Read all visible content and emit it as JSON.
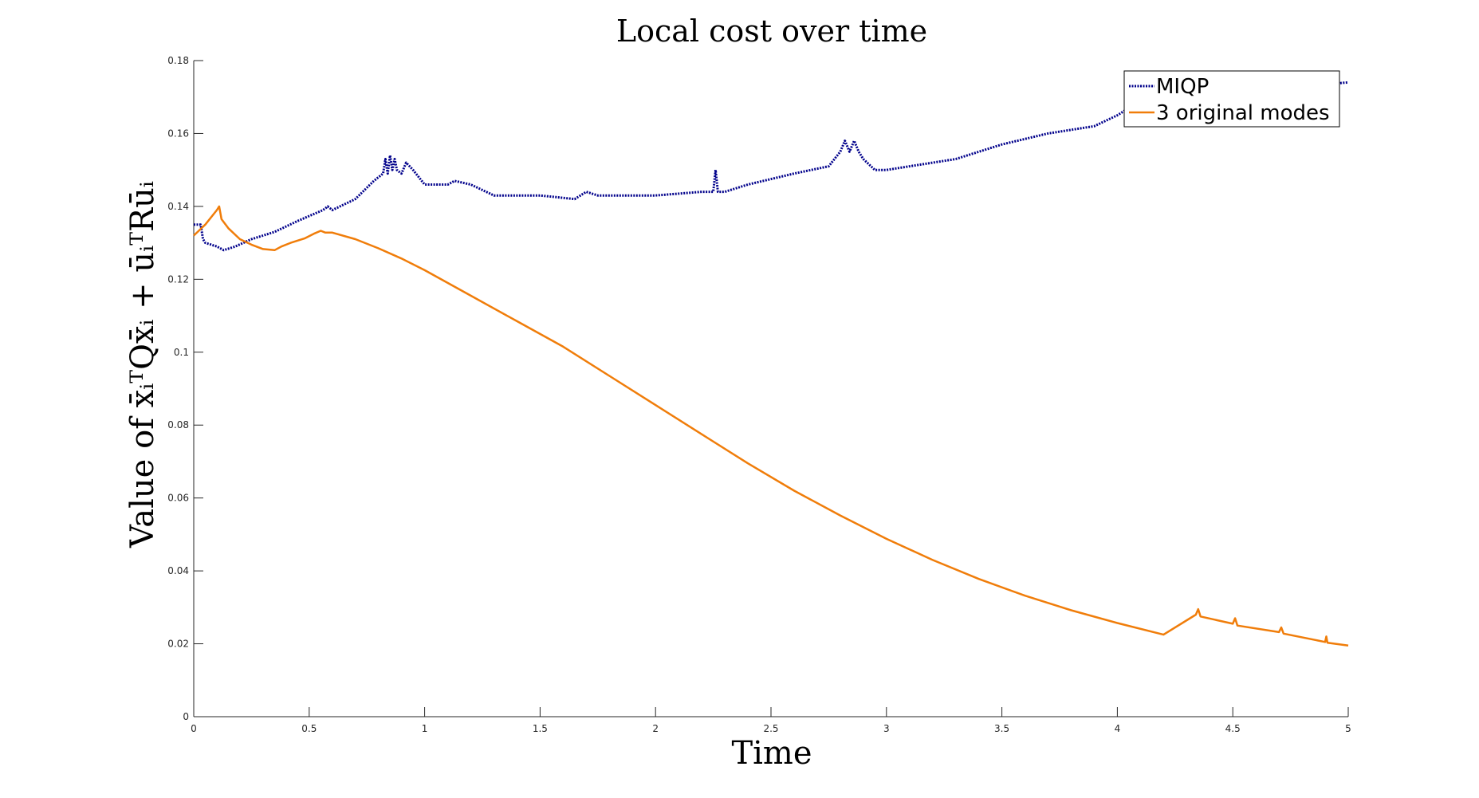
{
  "chart_data": {
    "type": "line",
    "title": "Local cost over time",
    "xlabel": "Time",
    "ylabel": "Value of x̄ᵢᵀQx̄ᵢ + ūᵢᵀRūᵢ",
    "xlim": [
      0,
      5
    ],
    "ylim": [
      0,
      0.18
    ],
    "xticks": [
      0,
      0.5,
      1,
      1.5,
      2,
      2.5,
      3,
      3.5,
      4,
      4.5,
      5
    ],
    "xtick_labels": [
      "0",
      "0.5",
      "1",
      "1.5",
      "2",
      "2.5",
      "3",
      "3.5",
      "4",
      "4.5",
      "5"
    ],
    "yticks": [
      0,
      0.02,
      0.04,
      0.06,
      0.08,
      0.1,
      0.12,
      0.14,
      0.16,
      0.18
    ],
    "ytick_labels": [
      "0",
      "0.02",
      "0.04",
      "0.06",
      "0.08",
      "0.1",
      "0.12",
      "0.14",
      "0.16",
      "0.18"
    ],
    "grid": false,
    "legend_position": "top-right",
    "series": [
      {
        "name": "MIQP",
        "color": "#00008b",
        "style": "dotted",
        "x": [
          0,
          0.03,
          0.04,
          0.05,
          0.1,
          0.13,
          0.18,
          0.25,
          0.35,
          0.45,
          0.56,
          0.58,
          0.6,
          0.7,
          0.78,
          0.82,
          0.83,
          0.84,
          0.85,
          0.86,
          0.87,
          0.88,
          0.9,
          0.92,
          0.95,
          1.0,
          1.05,
          1.1,
          1.13,
          1.2,
          1.3,
          1.5,
          1.65,
          1.7,
          1.75,
          1.8,
          2.0,
          2.2,
          2.25,
          2.26,
          2.27,
          2.3,
          2.4,
          2.6,
          2.75,
          2.8,
          2.82,
          2.84,
          2.86,
          2.88,
          2.9,
          2.95,
          3.0,
          3.1,
          3.3,
          3.5,
          3.7,
          3.9,
          4.0,
          4.05,
          4.1,
          4.3,
          4.6,
          4.8,
          5.0
        ],
        "y": [
          0.135,
          0.135,
          0.131,
          0.13,
          0.129,
          0.128,
          0.129,
          0.131,
          0.133,
          0.136,
          0.139,
          0.14,
          0.139,
          0.142,
          0.147,
          0.149,
          0.153,
          0.149,
          0.154,
          0.15,
          0.153,
          0.15,
          0.149,
          0.152,
          0.15,
          0.146,
          0.146,
          0.146,
          0.147,
          0.146,
          0.143,
          0.143,
          0.142,
          0.144,
          0.143,
          0.143,
          0.143,
          0.144,
          0.144,
          0.15,
          0.144,
          0.144,
          0.146,
          0.149,
          0.151,
          0.155,
          0.158,
          0.155,
          0.158,
          0.155,
          0.153,
          0.15,
          0.15,
          0.151,
          0.153,
          0.157,
          0.16,
          0.162,
          0.165,
          0.167,
          0.169,
          0.171,
          0.172,
          0.173,
          0.174
        ]
      },
      {
        "name": "3 original modes",
        "color": "#f07d0a",
        "style": "solid",
        "x": [
          0,
          0.05,
          0.1,
          0.11,
          0.12,
          0.15,
          0.2,
          0.25,
          0.3,
          0.35,
          0.38,
          0.42,
          0.48,
          0.52,
          0.55,
          0.57,
          0.6,
          0.7,
          0.8,
          0.9,
          1.0,
          1.2,
          1.4,
          1.6,
          1.8,
          2.0,
          2.2,
          2.4,
          2.6,
          2.8,
          3.0,
          3.2,
          3.4,
          3.6,
          3.8,
          4.0,
          4.2,
          4.34,
          4.35,
          4.36,
          4.5,
          4.51,
          4.52,
          4.7,
          4.71,
          4.72,
          4.9,
          4.905,
          4.91,
          5.0
        ],
        "y": [
          0.132,
          0.135,
          0.139,
          0.14,
          0.1365,
          0.134,
          0.131,
          0.1295,
          0.1283,
          0.128,
          0.129,
          0.13,
          0.1312,
          0.1325,
          0.1333,
          0.1328,
          0.1328,
          0.131,
          0.1285,
          0.1257,
          0.1225,
          0.1155,
          0.1085,
          0.1015,
          0.0935,
          0.0855,
          0.0775,
          0.0695,
          0.062,
          0.0552,
          0.0488,
          0.043,
          0.0378,
          0.0332,
          0.0292,
          0.0257,
          0.0225,
          0.028,
          0.0295,
          0.0275,
          0.0255,
          0.027,
          0.025,
          0.0232,
          0.0245,
          0.0228,
          0.0205,
          0.022,
          0.0203,
          0.0195
        ]
      }
    ]
  }
}
